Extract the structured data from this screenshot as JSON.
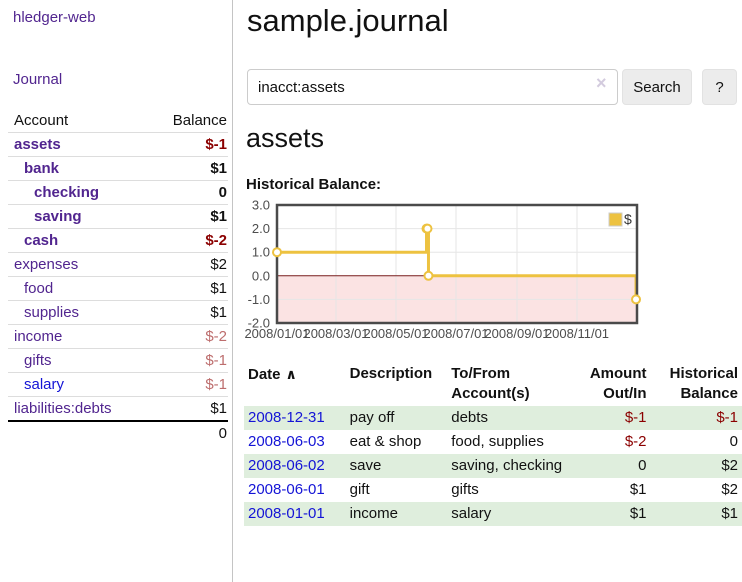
{
  "brand": "hledger-web",
  "sidebar": {
    "nav_journal": "Journal",
    "accounts": {
      "header_account": "Account",
      "header_balance": "Balance",
      "rows": [
        {
          "name": "assets",
          "balance": "$-1"
        },
        {
          "name": "bank",
          "balance": "$1"
        },
        {
          "name": "checking",
          "balance": "0"
        },
        {
          "name": "saving",
          "balance": "$1"
        },
        {
          "name": "cash",
          "balance": "$-2"
        },
        {
          "name": "expenses",
          "balance": "$2"
        },
        {
          "name": "food",
          "balance": "$1"
        },
        {
          "name": "supplies",
          "balance": "$1"
        },
        {
          "name": "income",
          "balance": "$-2"
        },
        {
          "name": "gifts",
          "balance": "$-1"
        },
        {
          "name": "salary",
          "balance": "$-1"
        },
        {
          "name": "liabilities:debts",
          "balance": "$1"
        }
      ],
      "total": "0"
    }
  },
  "header": {
    "title": "sample.journal"
  },
  "search": {
    "query": "inacct:assets",
    "clear_icon": "×",
    "search_button": "Search",
    "help_button": "?"
  },
  "account_page": {
    "heading": "assets",
    "chart_title": "Historical Balance:"
  },
  "chart_data": {
    "type": "line",
    "title": "Historical Balance",
    "series": [
      {
        "name": "$",
        "color": "#edc240",
        "step": true,
        "points": [
          [
            "2008-01-01",
            1
          ],
          [
            "2008-06-01",
            2
          ],
          [
            "2008-06-02",
            2
          ],
          [
            "2008-06-03",
            0
          ],
          [
            "2008-12-31",
            -1
          ]
        ]
      }
    ],
    "x_range": [
      "2008-01-01",
      "2009-01-01"
    ],
    "x_ticks": [
      "2008/01/01",
      "2008/03/01",
      "2008/05/01",
      "2008/07/01",
      "2008/09/01",
      "2008/11/01"
    ],
    "y_ticks": [
      "3.0",
      "2.0",
      "1.0",
      "0.0",
      "-1.0",
      "-2.0"
    ],
    "ylim": [
      -2,
      3
    ],
    "legend": {
      "label": "$",
      "position": "top-right"
    },
    "grid_color": "#e6e6e6",
    "border_color": "#4a4a4a",
    "negative_region_color": "#fbe3e3",
    "zero_line_color": "#7d1f1f",
    "tick_label_color": "#4d4d4d"
  },
  "register": {
    "headers": {
      "date": "Date",
      "description": "Description",
      "accounts": "To/From Account(s)",
      "amount": "Amount Out/In",
      "balance": "Historical Balance"
    },
    "sort_indicator": "∧",
    "rows": [
      {
        "date": "2008-12-31",
        "description": "pay off",
        "accounts": "debts",
        "amount": "$-1",
        "balance": "$-1"
      },
      {
        "date": "2008-06-03",
        "description": "eat & shop",
        "accounts": "food, supplies",
        "amount": "$-2",
        "balance": "0"
      },
      {
        "date": "2008-06-02",
        "description": "save",
        "accounts": "saving, checking",
        "amount": "0",
        "balance": "$2"
      },
      {
        "date": "2008-06-01",
        "description": "gift",
        "accounts": "gifts",
        "amount": "$1",
        "balance": "$2"
      },
      {
        "date": "2008-01-01",
        "description": "income",
        "accounts": "salary",
        "amount": "$1",
        "balance": "$1"
      }
    ]
  }
}
